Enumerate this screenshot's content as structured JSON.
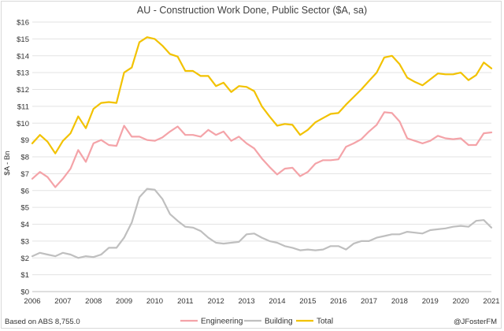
{
  "chart_data": {
    "type": "line",
    "title": "AU - Construction Work Done, Public Sector ($A, sa)",
    "ylabel": "$A - Bn",
    "xlabel": "",
    "source_note": "Based on ABS  8,755.0",
    "credit": "@JFosterFM",
    "ylim": [
      0,
      16
    ],
    "xlim": [
      2006,
      2021
    ],
    "grid": true,
    "legend_position": "bottom",
    "y_ticks": [
      "$0",
      "$1",
      "$2",
      "$3",
      "$4",
      "$5",
      "$6",
      "$7",
      "$8",
      "$9",
      "$10",
      "$11",
      "$12",
      "$13",
      "$14",
      "$15",
      "$16"
    ],
    "x_ticks": [
      "2006",
      "2007",
      "2008",
      "2009",
      "2010",
      "2011",
      "2012",
      "2013",
      "2014",
      "2015",
      "2016",
      "2017",
      "2018",
      "2019",
      "2020",
      "2021"
    ],
    "x": [
      2006.0,
      2006.25,
      2006.5,
      2006.75,
      2007.0,
      2007.25,
      2007.5,
      2007.75,
      2008.0,
      2008.25,
      2008.5,
      2008.75,
      2009.0,
      2009.25,
      2009.5,
      2009.75,
      2010.0,
      2010.25,
      2010.5,
      2010.75,
      2011.0,
      2011.25,
      2011.5,
      2011.75,
      2012.0,
      2012.25,
      2012.5,
      2012.75,
      2013.0,
      2013.25,
      2013.5,
      2013.75,
      2014.0,
      2014.25,
      2014.5,
      2014.75,
      2015.0,
      2015.25,
      2015.5,
      2015.75,
      2016.0,
      2016.25,
      2016.5,
      2016.75,
      2017.0,
      2017.25,
      2017.5,
      2017.75,
      2018.0,
      2018.25,
      2018.5,
      2018.75,
      2019.0,
      2019.25,
      2019.5,
      2019.75,
      2020.0,
      2020.25,
      2020.5,
      2020.75,
      2021.0
    ],
    "series": [
      {
        "name": "Engineering",
        "color": "#f4a3a8",
        "values": [
          6.7,
          7.1,
          6.8,
          6.2,
          6.7,
          7.3,
          8.4,
          7.7,
          8.8,
          9.0,
          8.7,
          8.65,
          9.85,
          9.2,
          9.2,
          9.0,
          8.95,
          9.15,
          9.5,
          9.8,
          9.3,
          9.3,
          9.2,
          9.6,
          9.3,
          9.5,
          8.95,
          9.2,
          8.8,
          8.5,
          7.9,
          7.4,
          6.95,
          7.3,
          7.35,
          6.85,
          7.1,
          7.6,
          7.8,
          7.8,
          7.85,
          8.6,
          8.8,
          9.05,
          9.5,
          9.9,
          10.65,
          10.6,
          10.1,
          9.1,
          8.95,
          8.8,
          8.95,
          9.25,
          9.1,
          9.05,
          9.1,
          8.7,
          8.7,
          9.4,
          9.45
        ]
      },
      {
        "name": "Building",
        "color": "#bfbfbf",
        "values": [
          2.1,
          2.3,
          2.2,
          2.1,
          2.3,
          2.2,
          2.0,
          2.1,
          2.05,
          2.2,
          2.6,
          2.6,
          3.2,
          4.1,
          5.6,
          6.1,
          6.05,
          5.5,
          4.6,
          4.2,
          3.85,
          3.8,
          3.6,
          3.2,
          2.9,
          2.85,
          2.9,
          2.95,
          3.4,
          3.45,
          3.2,
          3.0,
          2.9,
          2.7,
          2.6,
          2.45,
          2.5,
          2.45,
          2.5,
          2.7,
          2.7,
          2.5,
          2.85,
          3.0,
          3.0,
          3.2,
          3.3,
          3.4,
          3.4,
          3.55,
          3.5,
          3.45,
          3.65,
          3.7,
          3.75,
          3.85,
          3.9,
          3.85,
          4.2,
          4.25,
          3.8
        ]
      },
      {
        "name": "Total",
        "color": "#f2c200",
        "values": [
          8.8,
          9.3,
          8.9,
          8.2,
          8.95,
          9.4,
          10.4,
          9.7,
          10.85,
          11.2,
          11.25,
          11.2,
          13.0,
          13.3,
          14.8,
          15.1,
          15.0,
          14.6,
          14.1,
          13.95,
          13.1,
          13.1,
          12.8,
          12.8,
          12.2,
          12.4,
          11.85,
          12.2,
          12.15,
          11.9,
          11.0,
          10.4,
          9.85,
          9.95,
          9.9,
          9.3,
          9.6,
          10.05,
          10.3,
          10.55,
          10.6,
          11.1,
          11.55,
          12.0,
          12.5,
          13.0,
          13.9,
          14.0,
          13.5,
          12.7,
          12.45,
          12.25,
          12.6,
          12.95,
          12.9,
          12.9,
          13.0,
          12.55,
          12.85,
          13.6,
          13.25
        ]
      }
    ]
  }
}
